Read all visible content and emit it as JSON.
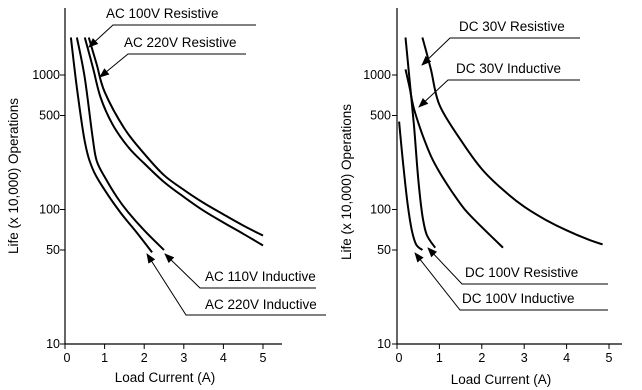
{
  "chart_data": [
    {
      "type": "line",
      "title": "",
      "xlabel": "Load Current (A)",
      "ylabel": "Life (x 10,000) Operations",
      "xlim": [
        0,
        5.5
      ],
      "ylim": [
        10,
        2000
      ],
      "yscale": "log",
      "x_ticks": [
        "0",
        "1",
        "2",
        "3",
        "4",
        "5"
      ],
      "y_ticks": [
        "10",
        "50",
        "100",
        "500",
        "1000"
      ],
      "grid": false,
      "legend": "none",
      "series": [
        {
          "name": "AC 100V Resistive",
          "x": [
            0.6,
            0.8,
            1.0,
            1.5,
            2.0,
            2.5,
            3.0,
            3.5,
            4.0,
            4.5,
            5.0
          ],
          "y": [
            1900,
            1200,
            750,
            400,
            260,
            180,
            140,
            112,
            92,
            76,
            64
          ]
        },
        {
          "name": "AC 220V Resistive",
          "x": [
            0.5,
            0.7,
            0.9,
            1.2,
            1.6,
            2.0,
            2.5,
            3.0,
            3.5,
            4.0,
            4.5,
            5.0
          ],
          "y": [
            1900,
            1150,
            680,
            430,
            290,
            220,
            160,
            124,
            98,
            80,
            66,
            54
          ]
        },
        {
          "name": "AC 110V Inductive",
          "x": [
            0.3,
            0.5,
            0.7,
            0.8,
            1.0,
            1.3,
            1.6,
            2.0,
            2.5
          ],
          "y": [
            1900,
            950,
            340,
            230,
            175,
            125,
            95,
            70,
            50
          ]
        },
        {
          "name": "AC 220V Inductive",
          "x": [
            0.15,
            0.3,
            0.5,
            0.7,
            1.0,
            1.4,
            1.8,
            2.2
          ],
          "y": [
            1900,
            800,
            320,
            200,
            140,
            95,
            68,
            48
          ]
        }
      ],
      "annotations": [
        "AC 100V Resistive",
        "AC 220V Resistive",
        "AC 110V Inductive",
        "AC 220V Inductive"
      ]
    },
    {
      "type": "line",
      "title": "",
      "xlabel": "Load Current (A)",
      "ylabel": "Life (x 10,000) Operations",
      "xlim": [
        0,
        5.5
      ],
      "ylim": [
        10,
        2000
      ],
      "yscale": "log",
      "x_ticks": [
        "0",
        "1",
        "2",
        "3",
        "4",
        "5"
      ],
      "y_ticks": [
        "10",
        "50",
        "100",
        "500",
        "1000"
      ],
      "grid": false,
      "legend": "none",
      "series": [
        {
          "name": "DC 30V Resistive",
          "x": [
            0.6,
            0.8,
            1.0,
            1.5,
            2.0,
            2.5,
            3.0,
            3.5,
            4.0,
            4.5,
            4.85
          ],
          "y": [
            1900,
            1100,
            600,
            330,
            200,
            140,
            105,
            84,
            70,
            60,
            55
          ]
        },
        {
          "name": "DC 30V Inductive",
          "x": [
            0.2,
            0.3,
            0.4,
            0.6,
            0.8,
            1.0,
            1.3,
            1.6,
            2.0,
            2.5
          ],
          "y": [
            1100,
            800,
            560,
            360,
            250,
            190,
            135,
            100,
            74,
            52
          ]
        },
        {
          "name": "DC 100V Resistive",
          "x": [
            0.2,
            0.3,
            0.4,
            0.5,
            0.6,
            0.7,
            0.9
          ],
          "y": [
            1900,
            900,
            420,
            170,
            90,
            65,
            52
          ]
        },
        {
          "name": "DC 100V Inductive",
          "x": [
            0.05,
            0.15,
            0.25,
            0.35,
            0.45,
            0.6
          ],
          "y": [
            450,
            210,
            110,
            70,
            55,
            50
          ]
        }
      ],
      "annotations": [
        "DC 30V Resistive",
        "DC 30V Inductive",
        "DC 100V Resistive",
        "DC 100V Inductive"
      ]
    }
  ]
}
